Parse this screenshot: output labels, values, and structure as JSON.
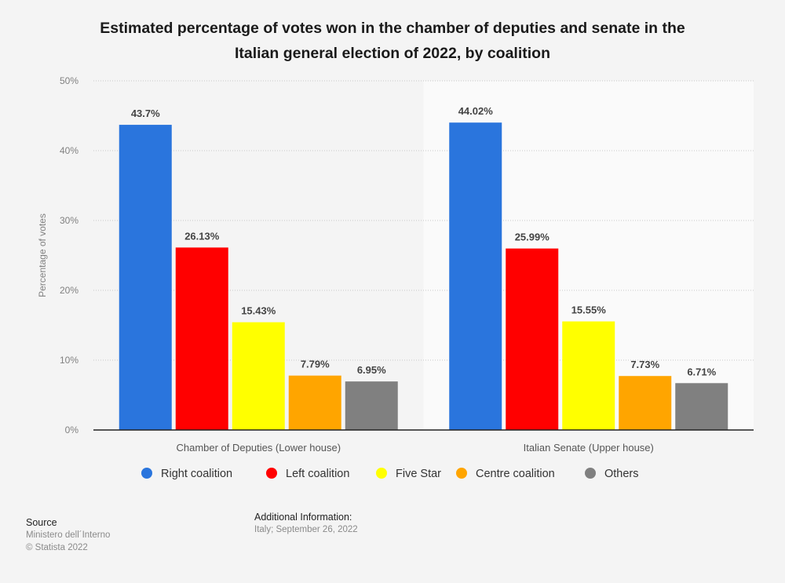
{
  "title_line1": "Estimated percentage of votes won in the chamber of deputies and senate in the",
  "title_line2": "Italian general election of 2022, by coalition",
  "chart_data": {
    "type": "bar",
    "title": "Estimated percentage of votes won in the chamber of deputies and senate in the Italian general election of 2022, by coalition",
    "xlabel": "",
    "ylabel": "Percentage of votes",
    "ylim": [
      0,
      50
    ],
    "yticks": [
      0,
      10,
      20,
      30,
      40,
      50
    ],
    "ytick_labels": [
      "0%",
      "10%",
      "20%",
      "30%",
      "40%",
      "50%"
    ],
    "grid": true,
    "legend_position": "bottom",
    "categories": [
      "Chamber of Deputies (Lower house)",
      "Italian Senate (Upper house)"
    ],
    "series": [
      {
        "name": "Right coalition",
        "color": "#2a75dd",
        "values": [
          43.7,
          44.02
        ],
        "labels": [
          "43.7%",
          "44.02%"
        ]
      },
      {
        "name": "Left coalition",
        "color": "#ff0000",
        "values": [
          26.13,
          25.99
        ],
        "labels": [
          "26.13%",
          "25.99%"
        ]
      },
      {
        "name": "Five Star",
        "color": "#ffff00",
        "values": [
          15.43,
          15.55
        ],
        "labels": [
          "15.43%",
          "15.55%"
        ]
      },
      {
        "name": "Centre coalition",
        "color": "#ffa500",
        "values": [
          7.79,
          7.73
        ],
        "labels": [
          "7.79%",
          "7.73%"
        ]
      },
      {
        "name": "Others",
        "color": "#808080",
        "values": [
          6.95,
          6.71
        ],
        "labels": [
          "6.95%",
          "6.71%"
        ]
      }
    ]
  },
  "footer": {
    "source_heading": "Source",
    "source_name": "Ministero dell´Interno",
    "copyright": "© Statista 2022",
    "additional_heading": "Additional Information:",
    "additional_text": "Italy; September 26, 2022"
  }
}
